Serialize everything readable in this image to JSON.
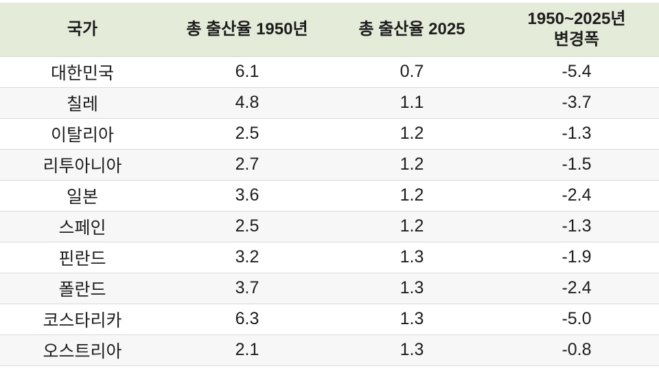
{
  "table": {
    "headers": {
      "country": "국가",
      "rate_1950": "총 출산율 1950년",
      "rate_2025": "총 출산율 2025",
      "change": "1950~2025년\n변경폭"
    },
    "rows": [
      {
        "country": "대한민국",
        "rate_1950": "6.1",
        "rate_2025": "0.7",
        "change": "-5.4"
      },
      {
        "country": "칠레",
        "rate_1950": "4.8",
        "rate_2025": "1.1",
        "change": "-3.7"
      },
      {
        "country": "이탈리아",
        "rate_1950": "2.5",
        "rate_2025": "1.2",
        "change": "-1.3"
      },
      {
        "country": "리투아니아",
        "rate_1950": "2.7",
        "rate_2025": "1.2",
        "change": "-1.5"
      },
      {
        "country": "일본",
        "rate_1950": "3.6",
        "rate_2025": "1.2",
        "change": "-2.4"
      },
      {
        "country": "스페인",
        "rate_1950": "2.5",
        "rate_2025": "1.2",
        "change": "-1.3"
      },
      {
        "country": "핀란드",
        "rate_1950": "3.2",
        "rate_2025": "1.3",
        "change": "-1.9"
      },
      {
        "country": "폴란드",
        "rate_1950": "3.7",
        "rate_2025": "1.3",
        "change": "-2.4"
      },
      {
        "country": "코스타리카",
        "rate_1950": "6.3",
        "rate_2025": "1.3",
        "change": "-5.0"
      },
      {
        "country": "오스트리아",
        "rate_1950": "2.1",
        "rate_2025": "1.3",
        "change": "-0.8"
      }
    ],
    "colors": {
      "header_bg": "#e4ecd9",
      "row_alt_bg": "#f7f7f7",
      "border": "#d9d9d9",
      "text": "#1c1c1c"
    }
  },
  "chart_data": {
    "type": "table",
    "title": "",
    "columns": [
      "국가",
      "총 출산율 1950년",
      "총 출산율 2025",
      "1950~2025년 변경폭"
    ],
    "rows": [
      [
        "대한민국",
        6.1,
        0.7,
        -5.4
      ],
      [
        "칠레",
        4.8,
        1.1,
        -3.7
      ],
      [
        "이탈리아",
        2.5,
        1.2,
        -1.3
      ],
      [
        "리투아니아",
        2.7,
        1.2,
        -1.5
      ],
      [
        "일본",
        3.6,
        1.2,
        -2.4
      ],
      [
        "스페인",
        2.5,
        1.2,
        -1.3
      ],
      [
        "핀란드",
        3.2,
        1.3,
        -1.9
      ],
      [
        "폴란드",
        3.7,
        1.3,
        -2.4
      ],
      [
        "코스타리카",
        6.3,
        1.3,
        -5.0
      ],
      [
        "오스트리아",
        2.1,
        1.3,
        -0.8
      ]
    ],
    "layout": {
      "header_position": "top",
      "grid": "horizontal-only",
      "alternating_rows": true
    }
  }
}
